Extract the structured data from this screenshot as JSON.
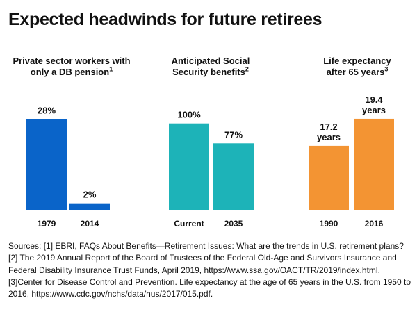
{
  "title": "Expected headwinds for future retirees",
  "chart_data": [
    {
      "type": "bar",
      "title": "Private sector workers with\nonly a DB pension",
      "title_note": "1",
      "categories": [
        "1979",
        "2014"
      ],
      "values": [
        28,
        2
      ],
      "value_labels": [
        "28%",
        "2%"
      ],
      "ylim": [
        0,
        30
      ],
      "color": "#0a64c9",
      "grid": false
    },
    {
      "type": "bar",
      "title": "Anticipated Social\nSecurity benefits",
      "title_note": "2",
      "categories": [
        "Current",
        "2035"
      ],
      "values": [
        100,
        77
      ],
      "value_labels": [
        "100%",
        "77%"
      ],
      "ylim": [
        0,
        107
      ],
      "color": "#1db3b8",
      "grid": false
    },
    {
      "type": "bar",
      "title": "Life expectancy\nafter 65 years",
      "title_note": "3",
      "categories": [
        "1990",
        "2016"
      ],
      "values": [
        17.2,
        19.4
      ],
      "value_labels": [
        "17.2\nyears",
        "19.4\nyears"
      ],
      "ylim": [
        12,
        20.3
      ],
      "color": "#f39433",
      "grid": false
    }
  ],
  "sources": "Sources: [1] EBRI, FAQs About Benefits—Retirement Issues: What are the trends in U.S. retirement plans?  [2] The 2019 Annual Report of the Board of Trustees of the Federal Old-Age and Survivors Insurance and Federal Disability Insurance Trust Funds, April 2019, https://www.ssa.gov/OACT/TR/2019/index.html. [3]Center for Disease Control and Prevention. Life expectancy at the age of 65 years in the U.S. from 1950 to 2016, https://www.cdc.gov/nchs/data/hus/2017/015.pdf."
}
